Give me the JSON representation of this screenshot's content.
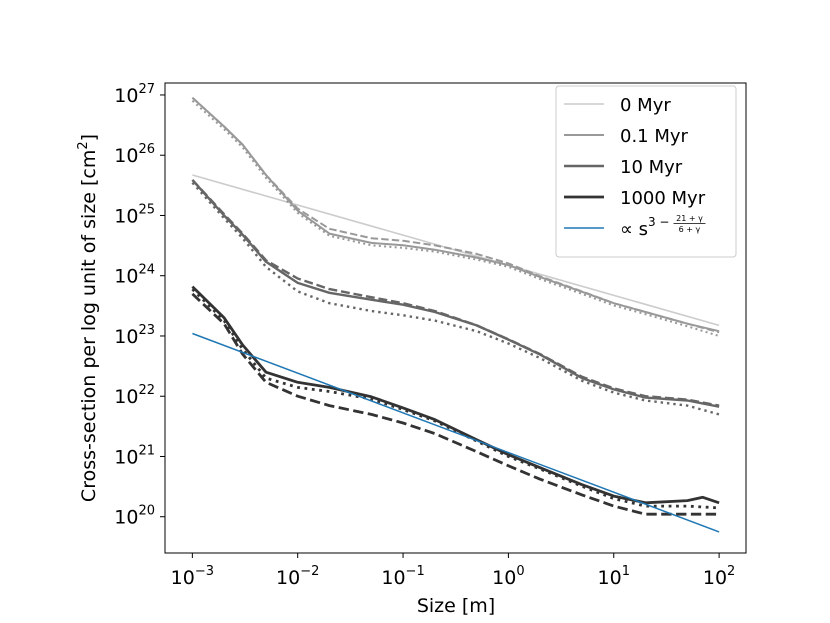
{
  "chart_data": {
    "type": "line",
    "xlabel": "Size [m]",
    "ylabel": [
      "Cross-section per log unit of size [cm",
      "2",
      "]"
    ],
    "xscale": "log",
    "yscale": "log",
    "xlim": [
      0.00055,
      180
    ],
    "ylim": [
      2.5e+19,
      1.58e+27
    ],
    "xticks": [
      {
        "value": 0.001,
        "label": "10",
        "exponent": "−3"
      },
      {
        "value": 0.01,
        "label": "10",
        "exponent": "−2"
      },
      {
        "value": 0.1,
        "label": "10",
        "exponent": "−1"
      },
      {
        "value": 1,
        "label": "10",
        "exponent": "0"
      },
      {
        "value": 10,
        "label": "10",
        "exponent": "1"
      },
      {
        "value": 100,
        "label": "10",
        "exponent": "2"
      }
    ],
    "yticks": [
      {
        "value": 1e+20,
        "label": "10",
        "exponent": "20"
      },
      {
        "value": 1e+21,
        "label": "10",
        "exponent": "21"
      },
      {
        "value": 1e+22,
        "label": "10",
        "exponent": "22"
      },
      {
        "value": 1e+23,
        "label": "10",
        "exponent": "23"
      },
      {
        "value": 1e+24,
        "label": "10",
        "exponent": "24"
      },
      {
        "value": 1e+25,
        "label": "10",
        "exponent": "25"
      },
      {
        "value": 1e+26,
        "label": "10",
        "exponent": "26"
      },
      {
        "value": 1e+27,
        "label": "10",
        "exponent": "27"
      }
    ],
    "legend": "upper right",
    "series": [
      {
        "name": "0 Myr",
        "color": "#cccccc",
        "linewidth": 1.6,
        "linestyle": "solid",
        "x": [
          0.001,
          100
        ],
        "values": [
          4.7e+25,
          1.5e+23
        ]
      },
      {
        "name": "0.1 Myr",
        "color": "#999999",
        "linewidth": 2,
        "linestyle": "solid",
        "x": [
          0.001,
          0.002,
          0.003,
          0.005,
          0.01,
          0.02,
          0.05,
          0.1,
          0.2,
          0.5,
          1,
          2,
          5,
          10,
          20,
          50,
          100
        ],
        "values": [
          9e+26,
          3e+26,
          1.5e+26,
          4.7e+25,
          1.2e+25,
          5e+24,
          3.5e+24,
          3.2e+24,
          2.7e+24,
          2e+24,
          1.5e+24,
          9.5e+23,
          5.4e+23,
          3.5e+23,
          2.5e+23,
          1.6e+23,
          1.2e+23
        ]
      },
      {
        "color": "#999999",
        "linewidth": 2,
        "linestyle": "dashed",
        "x": [
          0.001,
          0.002,
          0.003,
          0.005,
          0.01,
          0.02,
          0.05,
          0.1,
          0.2,
          0.5,
          1,
          2,
          5,
          10,
          20,
          50,
          100
        ],
        "values": [
          9e+26,
          3e+26,
          1.5e+26,
          4.7e+25,
          1.3e+25,
          6e+24,
          4.2e+24,
          3.8e+24,
          3.2e+24,
          2.3e+24,
          1.6e+24,
          9.8e+23,
          5.5e+23,
          3.5e+23,
          2.5e+23,
          1.6e+23,
          1.15e+23
        ]
      },
      {
        "color": "#999999",
        "linewidth": 2,
        "linestyle": "dotted",
        "x": [
          0.001,
          0.002,
          0.003,
          0.005,
          0.01,
          0.02,
          0.05,
          0.1,
          0.2,
          0.5,
          1,
          2,
          5,
          10,
          20,
          50,
          100
        ],
        "values": [
          8e+26,
          2.7e+26,
          1.35e+26,
          4.2e+25,
          1.1e+25,
          4.6e+24,
          3.2e+24,
          2.9e+24,
          2.5e+24,
          1.85e+24,
          1.4e+24,
          8.8e+23,
          5e+23,
          3.2e+23,
          2.3e+23,
          1.45e+23,
          1e+23
        ]
      },
      {
        "name": "10 Myr",
        "color": "#666666",
        "linewidth": 2.4,
        "linestyle": "solid",
        "x": [
          0.001,
          0.002,
          0.003,
          0.005,
          0.01,
          0.02,
          0.05,
          0.1,
          0.2,
          0.5,
          1,
          2,
          5,
          10,
          20,
          50,
          100
        ],
        "values": [
          3.9e+25,
          1e+25,
          4.8e+24,
          1.7e+24,
          7.6e+23,
          5.2e+23,
          4e+23,
          3.3e+23,
          2.5e+23,
          1.5e+23,
          8.7e+22,
          4.9e+22,
          2e+22,
          1.3e+22,
          9.5e+21,
          8.5e+21,
          6.7e+21
        ]
      },
      {
        "color": "#666666",
        "linewidth": 2.4,
        "linestyle": "dashed",
        "x": [
          0.001,
          0.002,
          0.003,
          0.005,
          0.01,
          0.02,
          0.05,
          0.1,
          0.2,
          0.5,
          1,
          2,
          5,
          10,
          20,
          50,
          100
        ],
        "values": [
          3.9e+25,
          1.05e+25,
          5e+24,
          1.8e+24,
          9e+23,
          6e+23,
          4.4e+23,
          3.5e+23,
          2.6e+23,
          1.5e+23,
          8.8e+22,
          5e+22,
          2.1e+22,
          1.35e+22,
          1e+22,
          8.8e+21,
          7e+21
        ]
      },
      {
        "color": "#666666",
        "linewidth": 2.4,
        "linestyle": "dotted",
        "x": [
          0.001,
          0.002,
          0.003,
          0.005,
          0.01,
          0.02,
          0.05,
          0.1,
          0.2,
          0.5,
          1,
          2,
          5,
          10,
          20,
          50,
          100
        ],
        "values": [
          3.5e+25,
          9e+24,
          4.2e+24,
          1.4e+24,
          5.5e+23,
          3.5e+23,
          2.6e+23,
          2.2e+23,
          1.8e+23,
          1.2e+23,
          7.5e+22,
          4.3e+22,
          1.8e+22,
          1.15e+22,
          8.5e+21,
          7e+21,
          5e+21
        ]
      },
      {
        "name": "1000 Myr",
        "color": "#333333",
        "linewidth": 2.8,
        "linestyle": "solid",
        "x": [
          0.001,
          0.002,
          0.003,
          0.005,
          0.01,
          0.02,
          0.05,
          0.1,
          0.2,
          0.5,
          1,
          2,
          5,
          10,
          20,
          50,
          70,
          100
        ],
        "values": [
          6.6e+23,
          2e+23,
          7.1e+22,
          2.5e+22,
          1.7e+22,
          1.4e+22,
          9.8e+21,
          6.4e+21,
          4.1e+21,
          1.9e+21,
          1.07e+21,
          6.5e+20,
          3.4e+20,
          2.2e+20,
          1.7e+20,
          1.85e+20,
          2.1e+20,
          1.7e+20
        ]
      },
      {
        "color": "#333333",
        "linewidth": 2.8,
        "linestyle": "dashed",
        "x": [
          0.001,
          0.002,
          0.003,
          0.005,
          0.01,
          0.02,
          0.05,
          0.1,
          0.2,
          0.5,
          1,
          2,
          5,
          10,
          20,
          50,
          100
        ],
        "values": [
          5e+23,
          1.6e+23,
          5e+22,
          1.7e+22,
          1e+22,
          7e+21,
          5e+21,
          3.6e+21,
          2.4e+21,
          1.2e+21,
          7e+20,
          4.2e+20,
          2.3e+20,
          1.5e+20,
          1.1e+20,
          1.1e+20,
          1.1e+20
        ]
      },
      {
        "color": "#333333",
        "linewidth": 2.8,
        "linestyle": "dotted",
        "x": [
          0.001,
          0.002,
          0.003,
          0.005,
          0.01,
          0.02,
          0.05,
          0.1,
          0.2,
          0.5,
          1,
          2,
          5,
          10,
          20,
          50,
          100
        ],
        "values": [
          6e+23,
          1.8e+23,
          6e+22,
          2e+22,
          1.4e+22,
          1.2e+22,
          9e+21,
          6e+21,
          3.9e+21,
          1.8e+21,
          1e+21,
          6.2e+20,
          3.2e+20,
          2e+20,
          1.5e+20,
          1.5e+20,
          1.4e+20
        ]
      },
      {
        "name": "∝ s",
        "name_exponent": "3 −",
        "name_fraction": [
          "21 + γ",
          "6 + γ"
        ],
        "color": "#1f77b4",
        "linewidth": 1.5,
        "linestyle": "solid",
        "x": [
          0.001,
          100
        ],
        "values": [
          1.1e+23,
          5.6e+19
        ]
      }
    ]
  }
}
